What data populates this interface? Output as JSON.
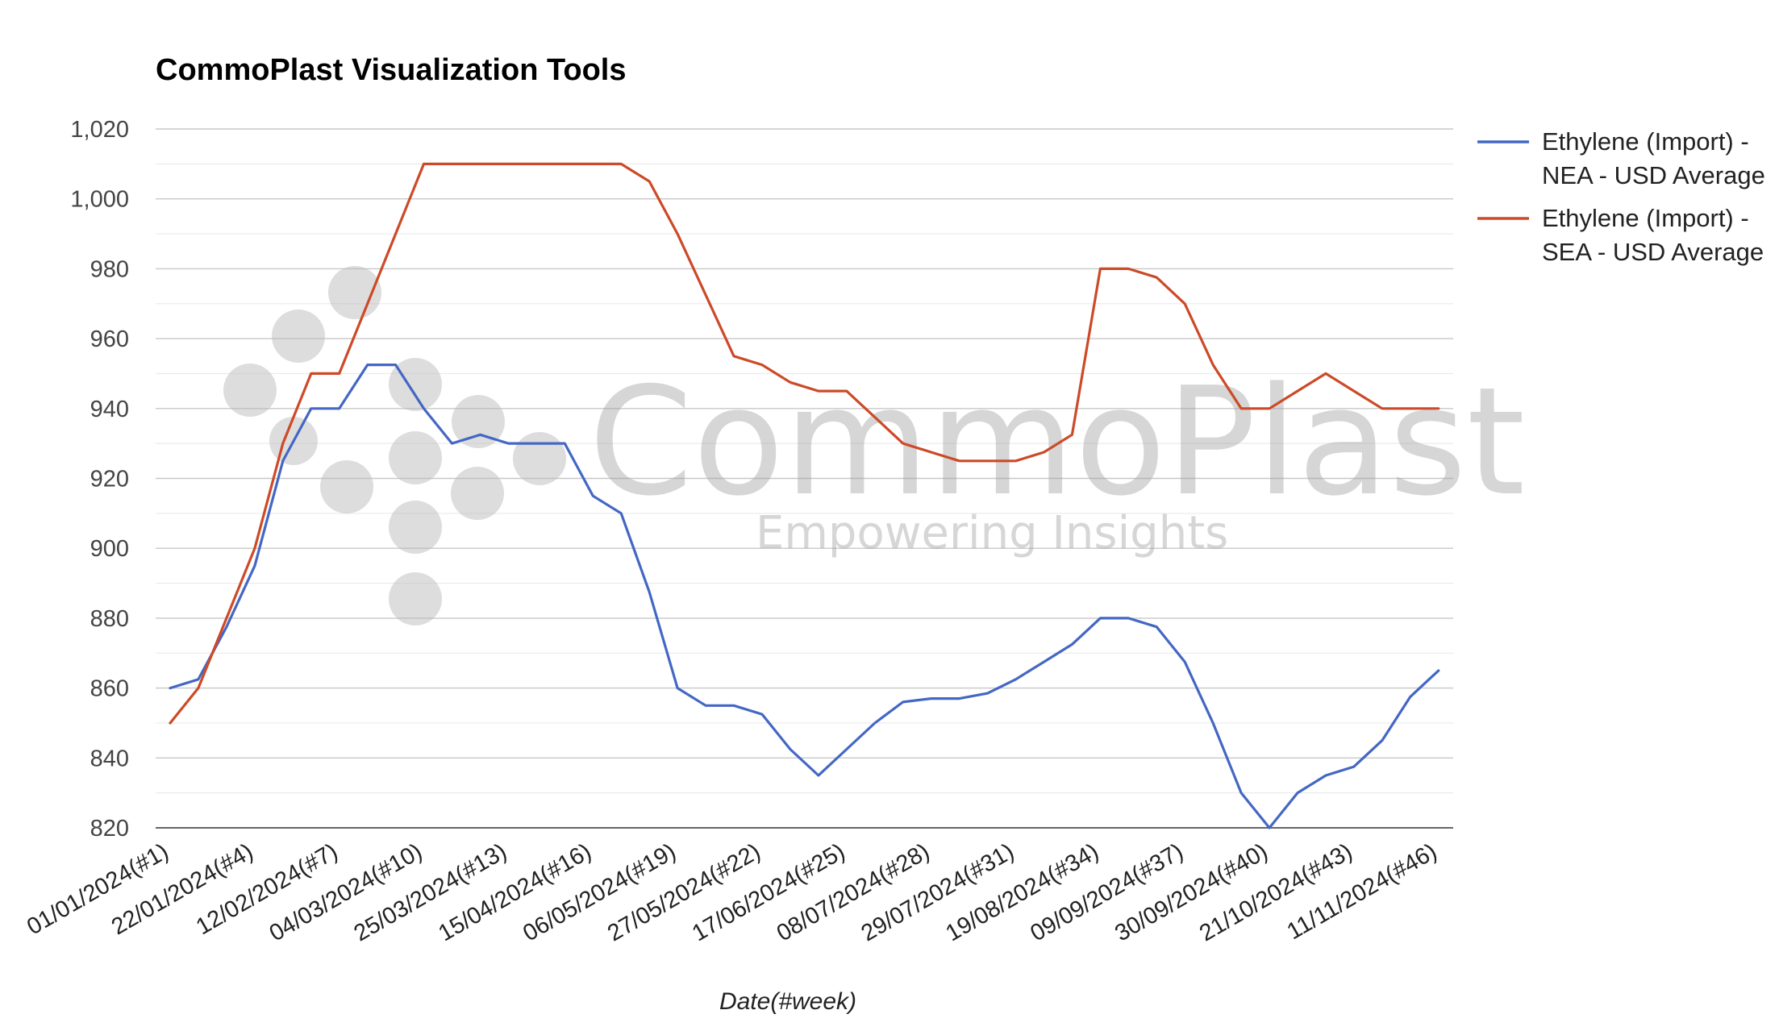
{
  "chart_data": {
    "type": "line",
    "title": "CommoPlast Visualization Tools",
    "xlabel": "Date(#week)",
    "ylabel": "",
    "ylim": [
      820,
      1020
    ],
    "y_ticks": [
      820,
      840,
      860,
      880,
      900,
      920,
      940,
      960,
      980,
      1000,
      1020
    ],
    "y_tick_labels": [
      "820",
      "840",
      "860",
      "880",
      "900",
      "920",
      "940",
      "960",
      "980",
      "1,000",
      "1,020"
    ],
    "x_tick_labels": [
      "01/01/2024(#1)",
      "22/01/2024(#4)",
      "12/02/2024(#7)",
      "04/03/2024(#10)",
      "25/03/2024(#13)",
      "15/04/2024(#16)",
      "06/05/2024(#19)",
      "27/05/2024(#22)",
      "17/06/2024(#25)",
      "08/07/2024(#28)",
      "29/07/2024(#31)",
      "19/08/2024(#34)",
      "09/09/2024(#37)",
      "30/09/2024(#40)",
      "21/10/2024(#43)",
      "11/11/2024(#46)"
    ],
    "x_tick_weeks": [
      1,
      4,
      7,
      10,
      13,
      16,
      19,
      22,
      25,
      28,
      31,
      34,
      37,
      40,
      43,
      46
    ],
    "grid": true,
    "legend_position": "right",
    "x": [
      1,
      2,
      3,
      4,
      5,
      6,
      7,
      8,
      9,
      10,
      11,
      12,
      13,
      14,
      15,
      16,
      17,
      18,
      19,
      20,
      21,
      22,
      23,
      24,
      25,
      26,
      27,
      28,
      29,
      30,
      31,
      32,
      33,
      34,
      35,
      36,
      37,
      38,
      39,
      40,
      41,
      42,
      43,
      44,
      45,
      46
    ],
    "series": [
      {
        "name": "Ethylene (Import) - NEA - USD Average",
        "legend_lines": [
          "Ethylene (Import) -",
          "NEA - USD Average"
        ],
        "color": "#4467c4",
        "values": [
          860,
          862.5,
          877.5,
          895,
          925,
          940,
          940,
          952.5,
          952.5,
          940,
          930,
          932.5,
          930,
          930,
          930,
          915,
          910,
          887.5,
          860,
          855,
          855,
          852.5,
          842.5,
          835,
          842.5,
          850,
          856,
          857,
          857,
          858.5,
          862.5,
          867.5,
          872.5,
          880,
          880,
          877.5,
          867.5,
          850,
          830,
          820,
          830,
          835,
          837.5,
          845,
          857.5,
          865
        ]
      },
      {
        "name": "Ethylene (Import) - SEA - USD Average",
        "legend_lines": [
          "Ethylene (Import) -",
          "SEA - USD Average"
        ],
        "color": "#cc4a28",
        "values": [
          850,
          860,
          880,
          900,
          930,
          950,
          950,
          970,
          990,
          1010,
          1010,
          1010,
          1010,
          1010,
          1010,
          1010,
          1010,
          1005,
          990,
          972.5,
          955,
          952.5,
          947.5,
          945,
          945,
          937.5,
          930,
          927.5,
          925,
          925,
          925,
          927.5,
          932.5,
          980,
          980,
          977.5,
          970,
          952.5,
          940,
          940,
          945,
          950,
          945,
          940,
          940,
          940
        ]
      }
    ]
  },
  "watermark": {
    "brand": "CommoPlast",
    "tagline": "Empowering Insights"
  }
}
